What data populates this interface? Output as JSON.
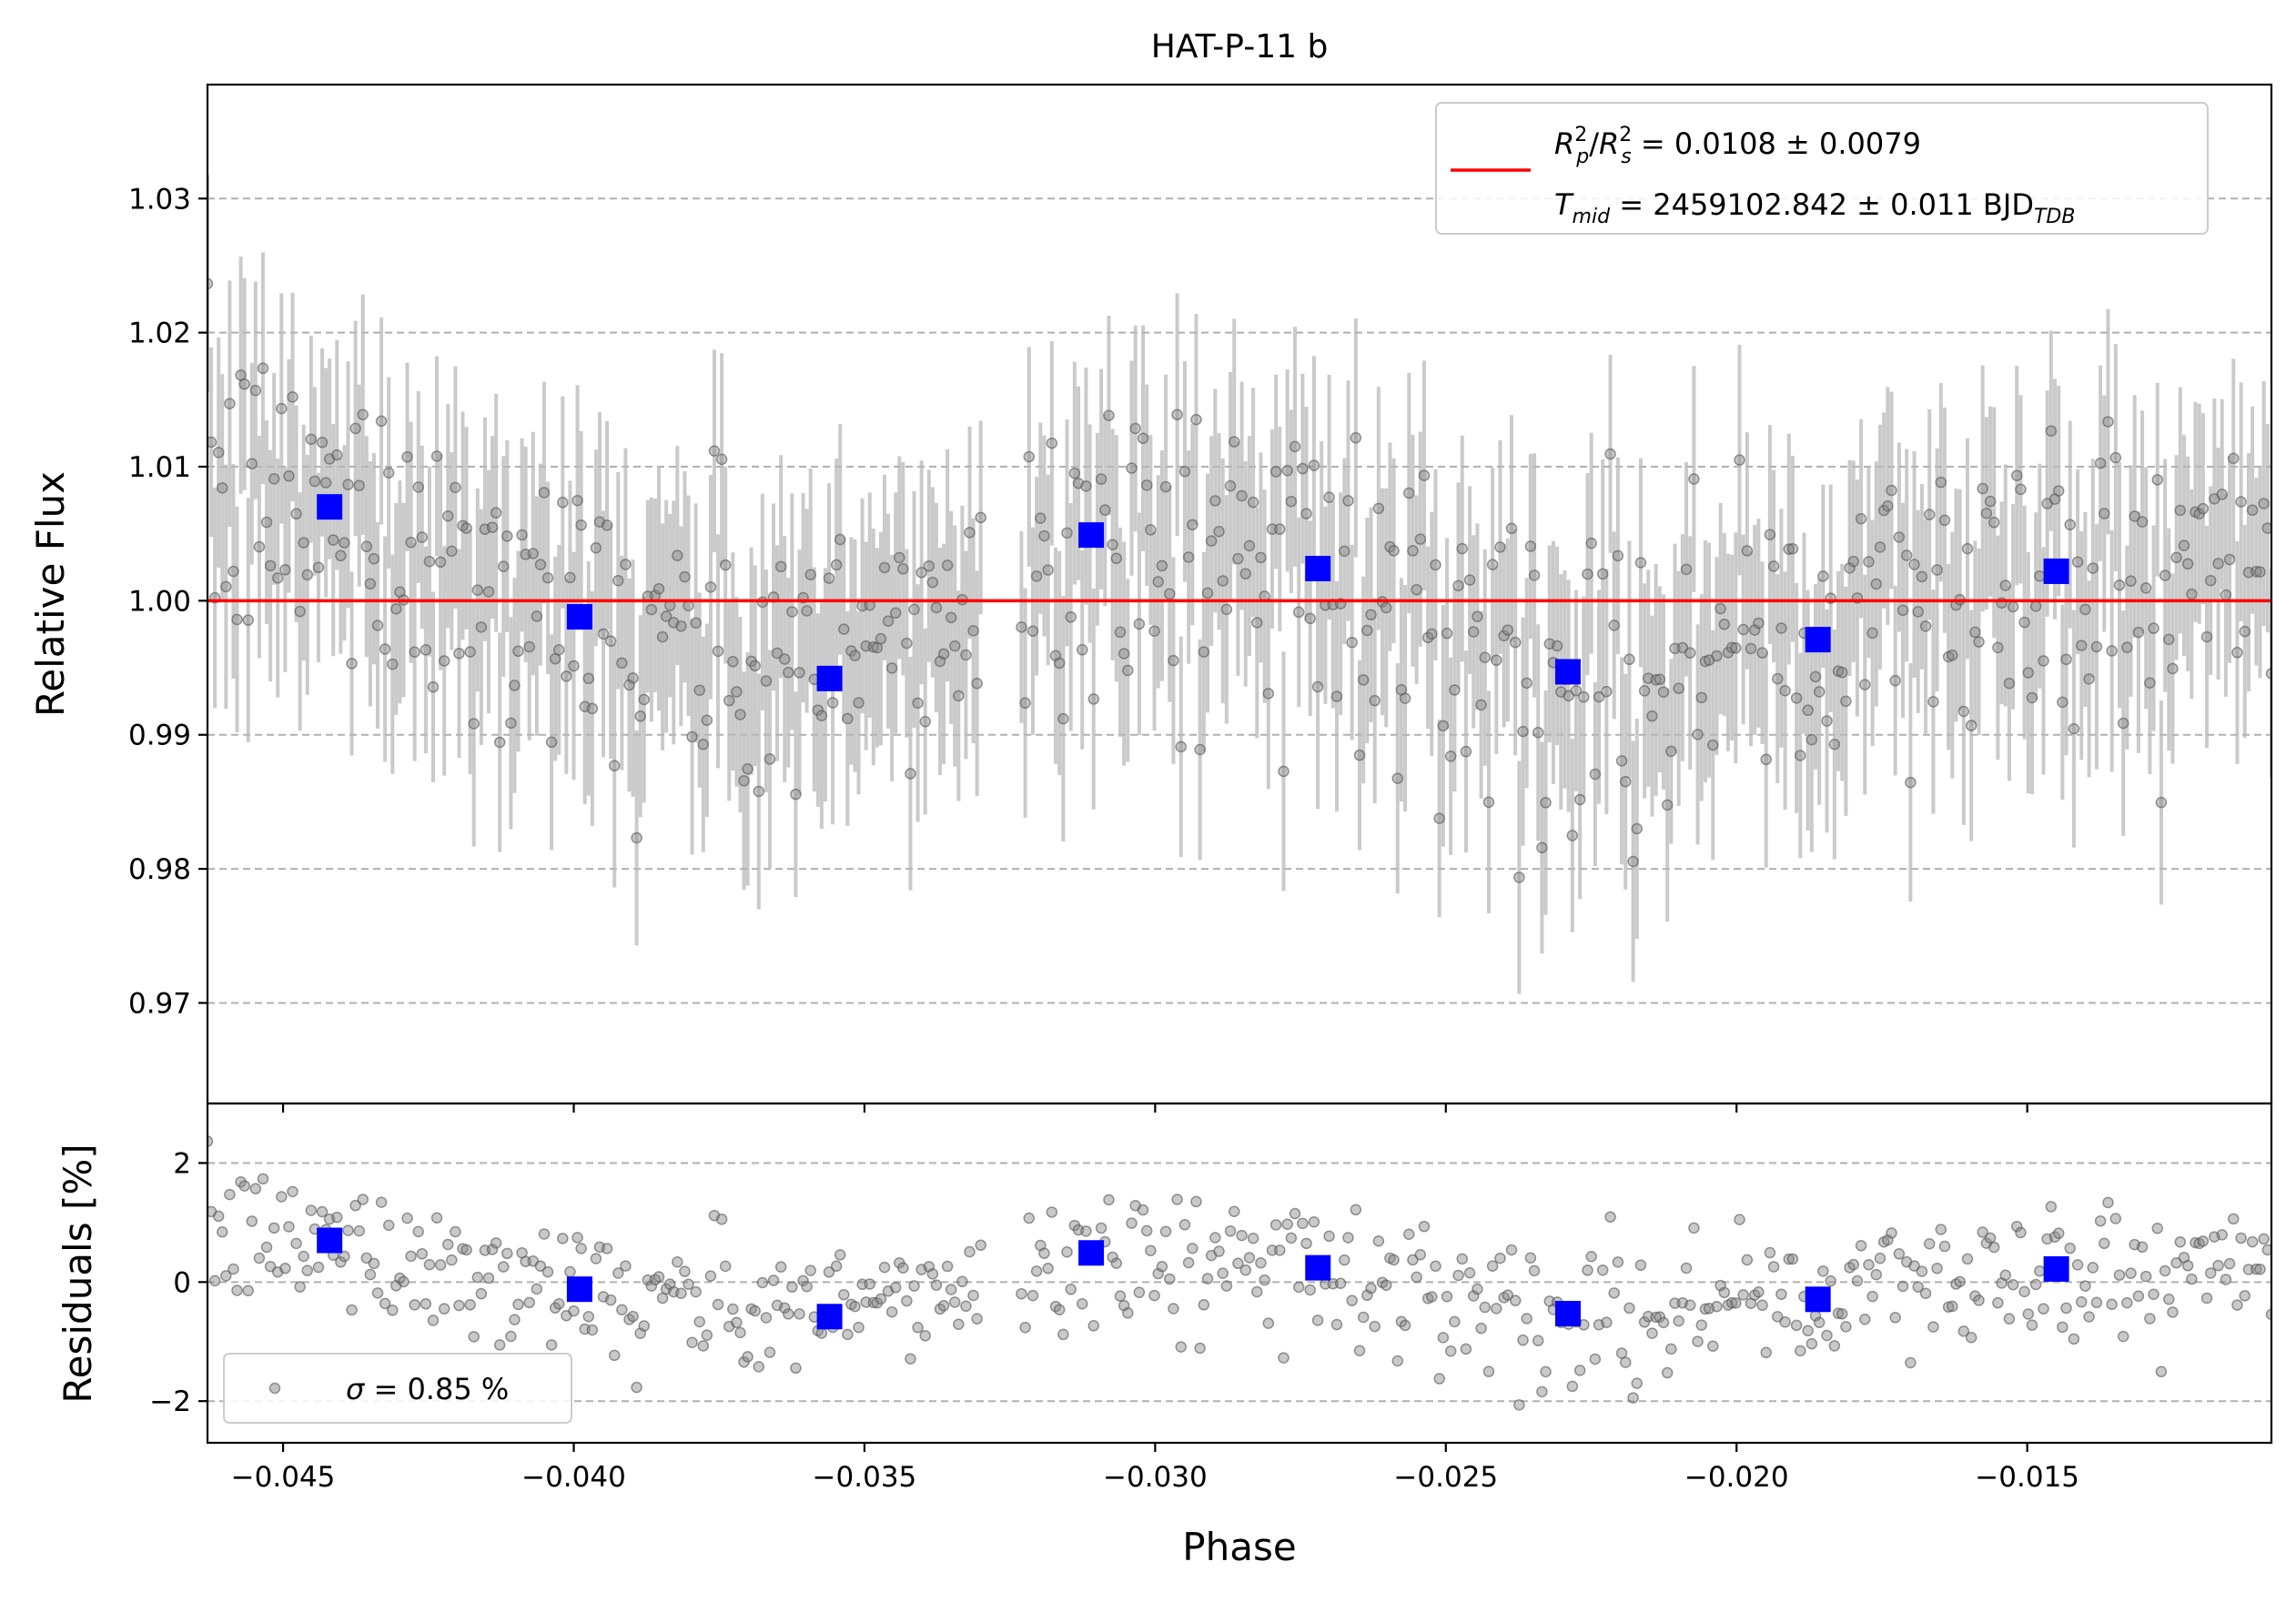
{
  "chart_data": [
    {
      "panel": "main",
      "type": "scatter",
      "title": "HAT-P-11 b",
      "xlabel": "",
      "ylabel": "Relative Flux",
      "xlim": [
        -0.0463,
        -0.0108
      ],
      "ylim": [
        0.9625,
        1.0385
      ],
      "grid": "y",
      "x_ticks": [
        -0.045,
        -0.04,
        -0.035,
        -0.03,
        -0.025,
        -0.02,
        -0.015
      ],
      "y_ticks": [
        0.97,
        0.98,
        0.99,
        1.0,
        1.01,
        1.02,
        1.03
      ],
      "y_tick_labels": [
        "0.97",
        "0.98",
        "0.99",
        "1.00",
        "1.01",
        "1.02",
        "1.03"
      ],
      "model_line": {
        "y": 1.0,
        "color": "#ff0000"
      },
      "data_segments": [
        {
          "x_start": -0.0463,
          "x_end": -0.033,
          "n": 210,
          "typical_error": 0.008,
          "scatter": 0.006
        },
        {
          "x_start": -0.0323,
          "x_end": -0.0108,
          "n": 330,
          "typical_error": 0.008,
          "scatter": 0.006
        }
      ],
      "binned": {
        "x": [
          -0.0442,
          -0.0399,
          -0.0356,
          -0.0311,
          -0.0272,
          -0.0229,
          -0.0186,
          -0.0145
        ],
        "y": [
          1.007,
          0.9988,
          0.9942,
          1.0049,
          1.0024,
          0.9947,
          0.9971,
          1.0022
        ],
        "color": "#0000ff"
      },
      "legend": {
        "placement": "top-right",
        "line1": {
          "a": "R",
          "a_sup": "2",
          "a_sub": "p",
          "slash": "/",
          "b": "R",
          "b_sup": "2",
          "b_sub": "s",
          "rest": " = 0.0108 ± 0.0079"
        },
        "line2": {
          "a": "T",
          "a_sub": "mid",
          "rest": " = 2459102.842 ± 0.011 BJD",
          "tail_sub": "TDB"
        }
      }
    },
    {
      "panel": "residuals",
      "type": "scatter",
      "xlabel": "Phase",
      "ylabel": "Residuals [%]",
      "xlim": [
        -0.0463,
        -0.0108
      ],
      "ylim": [
        -2.7,
        3.0
      ],
      "grid": "y",
      "x_ticks": [
        -0.045,
        -0.04,
        -0.035,
        -0.03,
        -0.025,
        -0.02,
        -0.015
      ],
      "x_tick_labels": [
        "−0.045",
        "−0.040",
        "−0.035",
        "−0.030",
        "−0.025",
        "−0.020",
        "−0.015"
      ],
      "y_ticks": [
        -2,
        0,
        2
      ],
      "y_tick_labels": [
        "−2",
        "0",
        "2"
      ],
      "binned": {
        "x": [
          -0.0442,
          -0.0399,
          -0.0356,
          -0.0311,
          -0.0272,
          -0.0229,
          -0.0186,
          -0.0145
        ],
        "y": [
          0.7,
          -0.12,
          -0.58,
          0.49,
          0.24,
          -0.53,
          -0.29,
          0.22
        ],
        "color": "#0000ff"
      },
      "legend": {
        "placement": "bottom-left",
        "sigma_symbol": "σ",
        "rest": " = 0.85 %"
      }
    }
  ]
}
